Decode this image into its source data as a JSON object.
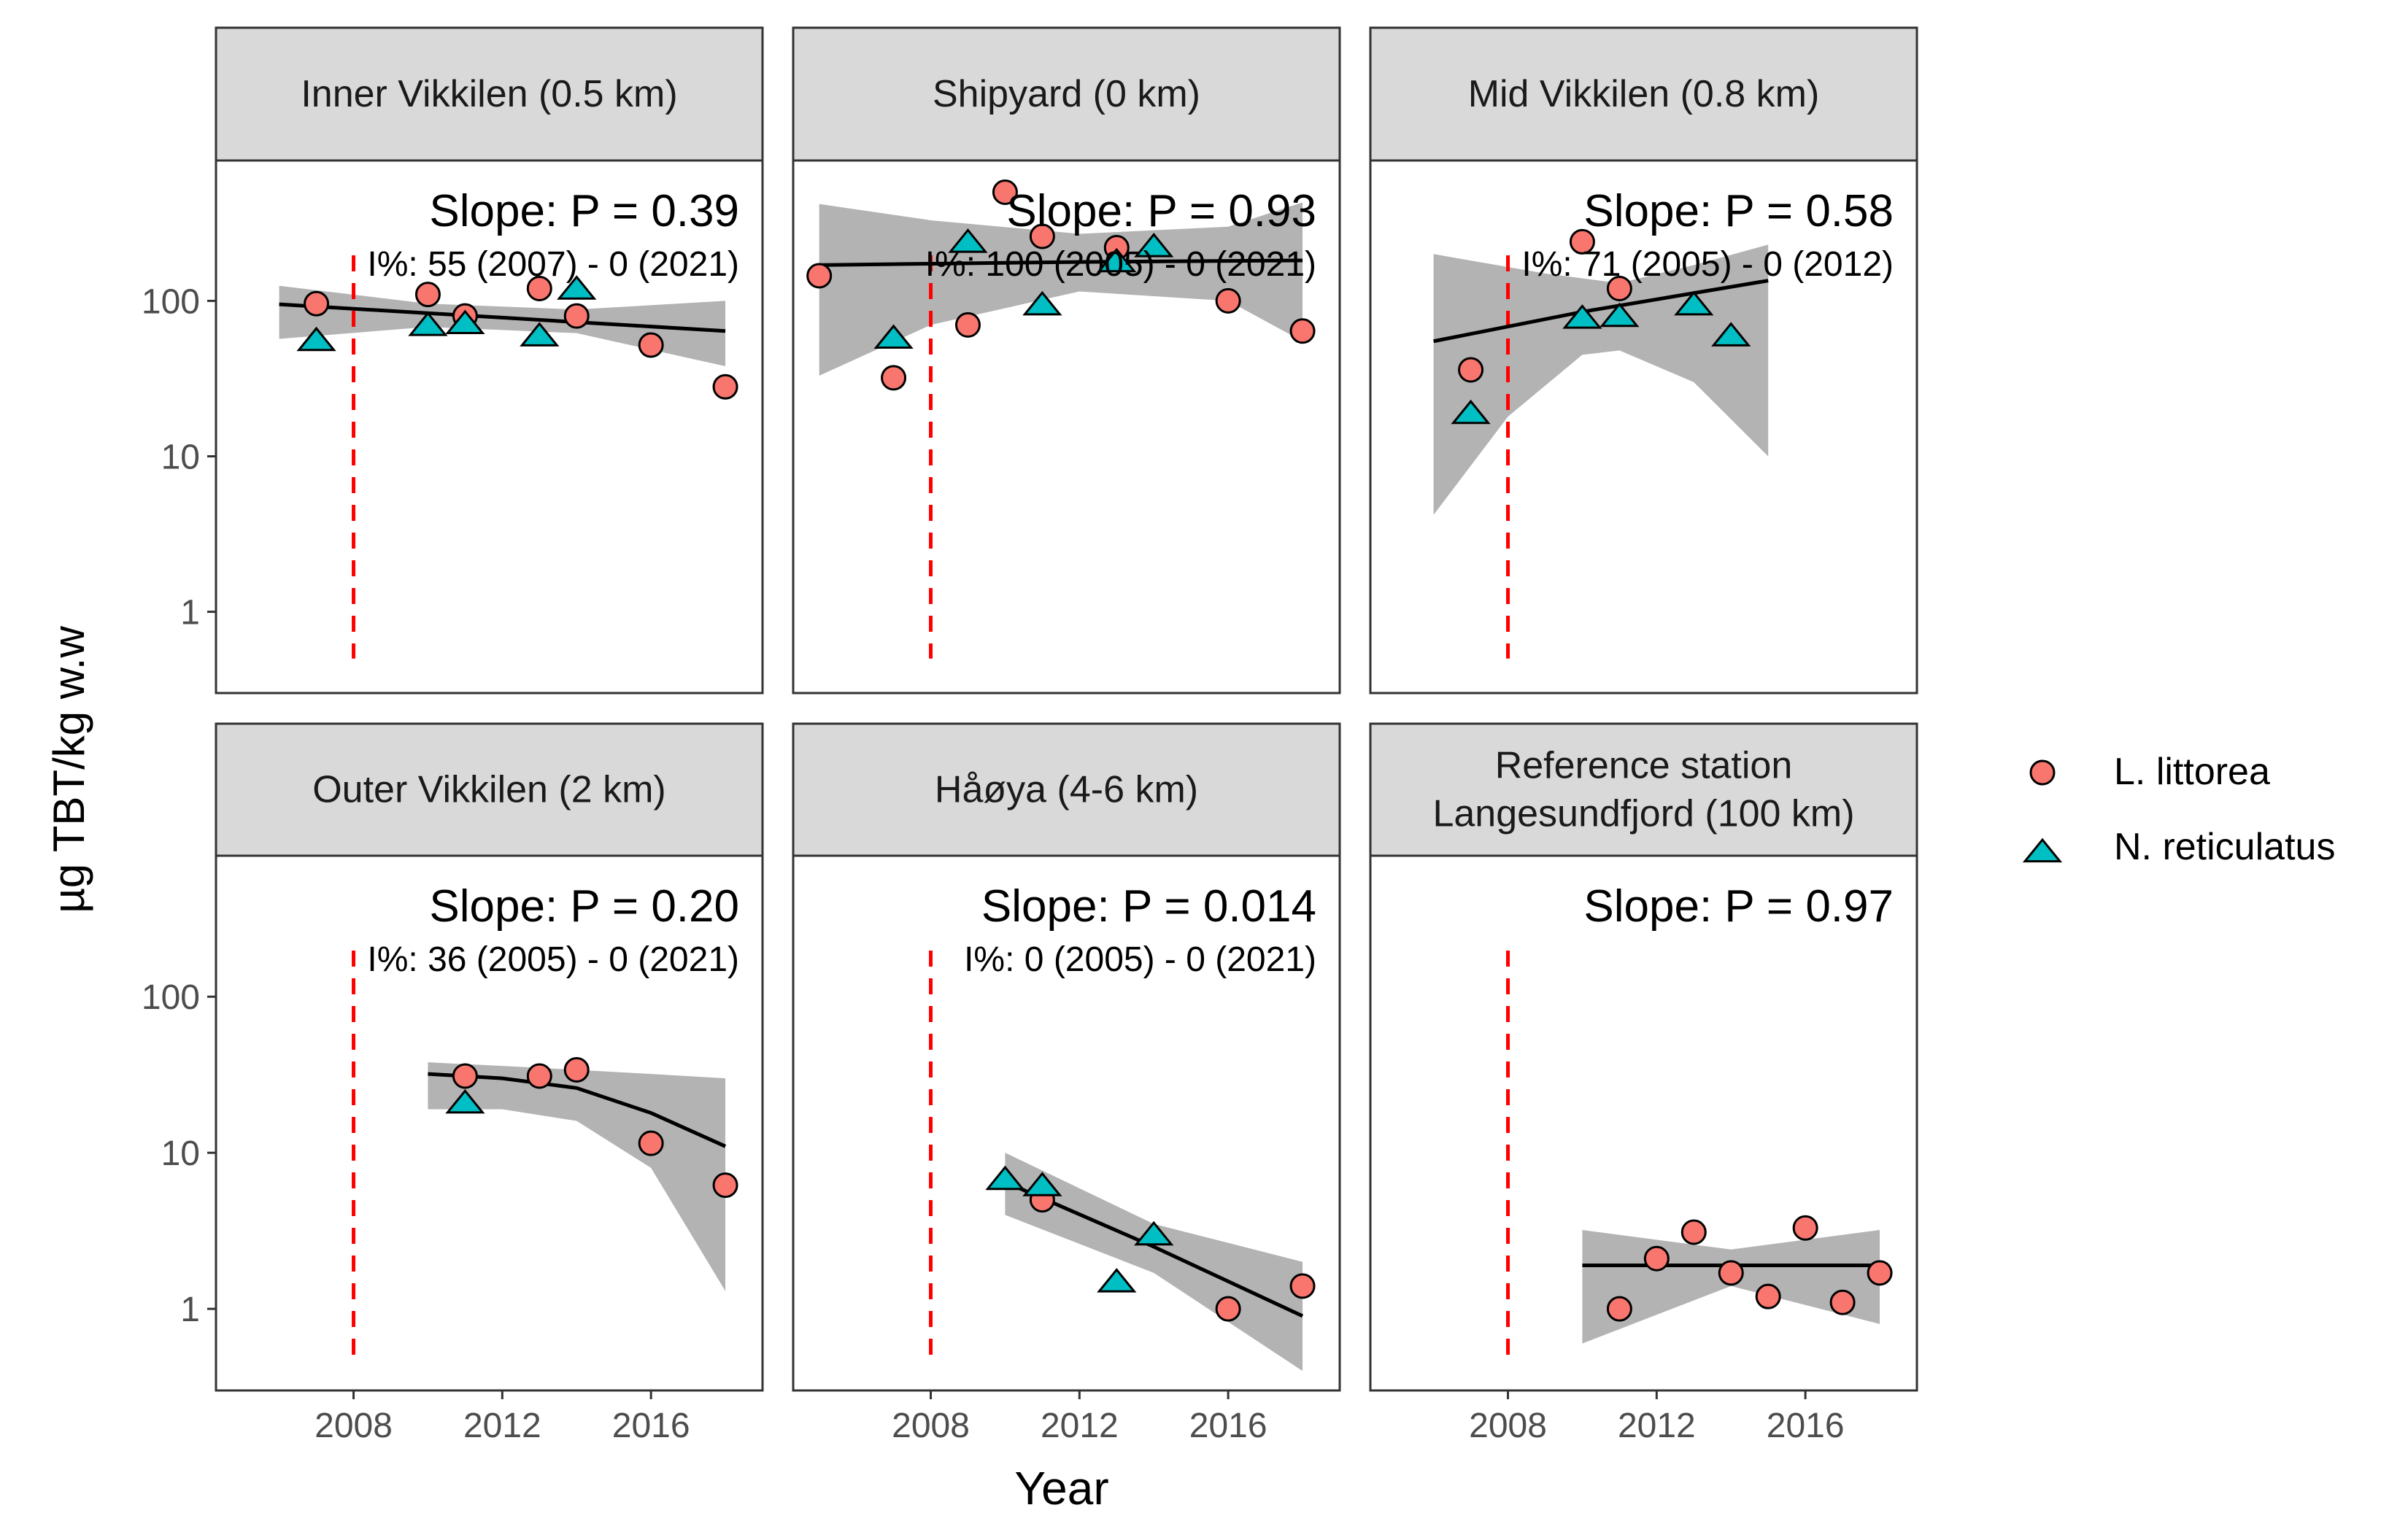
{
  "figure": {
    "ylabel": "µg TBT/kg w.w",
    "xlabel": "Year",
    "legend": [
      {
        "label": "L. littorea",
        "shape": "circle",
        "fill": "#F8766D"
      },
      {
        "label": "N. reticulatus",
        "shape": "triangle",
        "fill": "#00BFC4"
      }
    ]
  },
  "colors": {
    "strip_bg": "#D9D9D9",
    "border": "#333333",
    "ribbon": "#B3B3B3",
    "trend": "#000000",
    "vline": "#FF0000",
    "littorea": "#F8766D",
    "reticulatus": "#00BFC4"
  },
  "chart_data": {
    "type": "scatter",
    "y_scale": "log10",
    "ylim": [
      0.3,
      800
    ],
    "xlim": [
      2004.3,
      2019
    ],
    "yticks": [
      "1",
      "10",
      "100"
    ],
    "xticks": [
      "2008",
      "2012",
      "2016"
    ],
    "reference_line_x": 2008,
    "legend_position": "right",
    "panels": [
      {
        "title": [
          "Inner Vikkilen (0.5 km)"
        ],
        "slope_label": "Slope:  P = 0.39",
        "impo_label": "I%: 55 (2007) - 0 (2021)",
        "littorea": [
          [
            2007,
            96
          ],
          [
            2010,
            110
          ],
          [
            2011,
            80
          ],
          [
            2013,
            120
          ],
          [
            2014,
            80
          ],
          [
            2016,
            52
          ],
          [
            2018,
            28
          ]
        ],
        "reticulatus": [
          [
            2007,
            56
          ],
          [
            2010,
            70
          ],
          [
            2011,
            72
          ],
          [
            2013,
            60
          ],
          [
            2014,
            120
          ]
        ],
        "trend": [
          [
            2006,
            95
          ],
          [
            2012,
            78
          ],
          [
            2018,
            64
          ]
        ],
        "ribbon_upper": [
          [
            2006,
            125
          ],
          [
            2010,
            96
          ],
          [
            2014,
            88
          ],
          [
            2018,
            100
          ]
        ],
        "ribbon_lower": [
          [
            2006,
            57
          ],
          [
            2010,
            68
          ],
          [
            2014,
            62
          ],
          [
            2018,
            38
          ]
        ]
      },
      {
        "title": [
          "Shipyard (0 km)"
        ],
        "slope_label": "Slope:  P = 0.93",
        "impo_label": "I%: 100 (2005) - 0 (2021)",
        "littorea": [
          [
            2005,
            145
          ],
          [
            2007,
            32
          ],
          [
            2009,
            70
          ],
          [
            2010,
            500
          ],
          [
            2011,
            260
          ],
          [
            2013,
            220
          ],
          [
            2016,
            100
          ],
          [
            2018,
            64
          ]
        ],
        "reticulatus": [
          [
            2007,
            58
          ],
          [
            2009,
            240
          ],
          [
            2011,
            95
          ],
          [
            2013,
            180
          ],
          [
            2014,
            225
          ]
        ],
        "trend": [
          [
            2005,
            170
          ],
          [
            2012,
            178
          ],
          [
            2018,
            182
          ]
        ],
        "ribbon_upper": [
          [
            2005,
            420
          ],
          [
            2008,
            330
          ],
          [
            2012,
            270
          ],
          [
            2016,
            300
          ],
          [
            2018,
            430
          ]
        ],
        "ribbon_lower": [
          [
            2005,
            33
          ],
          [
            2008,
            70
          ],
          [
            2012,
            115
          ],
          [
            2016,
            100
          ],
          [
            2018,
            55
          ]
        ]
      },
      {
        "title": [
          "Mid Vikkilen (0.8 km)"
        ],
        "slope_label": "Slope:  P = 0.58",
        "impo_label": "I%: 71 (2005) - 0 (2012)",
        "littorea": [
          [
            2007,
            36
          ],
          [
            2010,
            240
          ],
          [
            2011,
            120
          ]
        ],
        "reticulatus": [
          [
            2007,
            19
          ],
          [
            2010,
            78
          ],
          [
            2011,
            80
          ],
          [
            2013,
            95
          ],
          [
            2014,
            60
          ]
        ],
        "trend": [
          [
            2006,
            55
          ],
          [
            2010,
            85
          ],
          [
            2015,
            135
          ]
        ],
        "ribbon_upper": [
          [
            2006,
            200
          ],
          [
            2009,
            150
          ],
          [
            2011,
            130
          ],
          [
            2013,
            170
          ],
          [
            2015,
            230
          ]
        ],
        "ribbon_lower": [
          [
            2006,
            4.2
          ],
          [
            2008,
            18
          ],
          [
            2010,
            45
          ],
          [
            2011,
            48
          ],
          [
            2013,
            30
          ],
          [
            2015,
            10
          ]
        ]
      },
      {
        "title": [
          "Outer Vikkilen (2 km)"
        ],
        "slope_label": "Slope:  P = 0.20",
        "impo_label": "I%: 36 (2005) - 0 (2021)",
        "littorea": [
          [
            2011,
            31
          ],
          [
            2013,
            31
          ],
          [
            2014,
            34
          ],
          [
            2016,
            11.5
          ],
          [
            2018,
            6.2
          ]
        ],
        "reticulatus": [
          [
            2011,
            21
          ]
        ],
        "trend": [
          [
            2010,
            32
          ],
          [
            2012,
            30
          ],
          [
            2014,
            26
          ],
          [
            2016,
            18
          ],
          [
            2018,
            11
          ]
        ],
        "ribbon_upper": [
          [
            2010,
            38
          ],
          [
            2012,
            36
          ],
          [
            2014,
            34
          ],
          [
            2016,
            32
          ],
          [
            2018,
            30
          ]
        ],
        "ribbon_lower": [
          [
            2010,
            19
          ],
          [
            2012,
            19
          ],
          [
            2014,
            16
          ],
          [
            2016,
            8
          ],
          [
            2018,
            1.3
          ]
        ]
      },
      {
        "title": [
          "Håøya (4-6 km)"
        ],
        "slope_label": "Slope:  P = 0.014",
        "impo_label": "I%: 0 (2005) - 0 (2021)",
        "littorea": [
          [
            2011,
            5
          ],
          [
            2016,
            1
          ],
          [
            2018,
            1.4
          ]
        ],
        "reticulatus": [
          [
            2010,
            6.8
          ],
          [
            2011,
            6.2
          ],
          [
            2013,
            1.5
          ],
          [
            2014,
            3
          ]
        ],
        "trend": [
          [
            2010,
            6.5
          ],
          [
            2014,
            2.5
          ],
          [
            2018,
            0.9
          ]
        ],
        "ribbon_upper": [
          [
            2010,
            10
          ],
          [
            2014,
            3.5
          ],
          [
            2018,
            2
          ]
        ],
        "ribbon_lower": [
          [
            2010,
            4
          ],
          [
            2014,
            1.7
          ],
          [
            2018,
            0.4
          ]
        ]
      },
      {
        "title": [
          "Reference station",
          "Langesundfjord (100 km)"
        ],
        "slope_label": "Slope:  P = 0.97",
        "impo_label": "",
        "littorea": [
          [
            2011,
            1
          ],
          [
            2012,
            2.1
          ],
          [
            2013,
            3.1
          ],
          [
            2014,
            1.7
          ],
          [
            2015,
            1.2
          ],
          [
            2016,
            3.3
          ],
          [
            2017,
            1.1
          ],
          [
            2018,
            1.7
          ]
        ],
        "reticulatus": [],
        "trend": [
          [
            2010,
            1.9
          ],
          [
            2014,
            1.9
          ],
          [
            2018,
            1.9
          ]
        ],
        "ribbon_upper": [
          [
            2010,
            3.2
          ],
          [
            2014,
            2.4
          ],
          [
            2018,
            3.2
          ]
        ],
        "ribbon_lower": [
          [
            2010,
            0.6
          ],
          [
            2014,
            1.4
          ],
          [
            2018,
            0.8
          ]
        ]
      }
    ]
  }
}
